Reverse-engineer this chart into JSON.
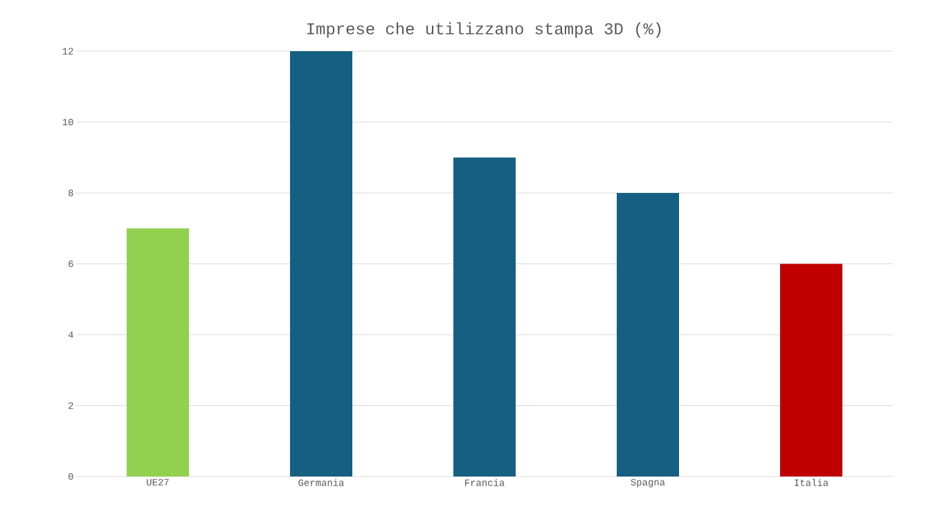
{
  "chart_data": {
    "type": "bar",
    "title": "Imprese che utilizzano stampa 3D (%)",
    "categories": [
      "UE27",
      "Germania",
      "Francia",
      "Spagna",
      "Italia"
    ],
    "values": [
      7,
      12,
      9,
      8,
      6
    ],
    "colors": [
      "#92d050",
      "#156082",
      "#156082",
      "#156082",
      "#c00000"
    ],
    "ylim": [
      0,
      12
    ],
    "yticks": [
      0,
      2,
      4,
      6,
      8,
      10,
      12
    ],
    "grid": "y"
  }
}
